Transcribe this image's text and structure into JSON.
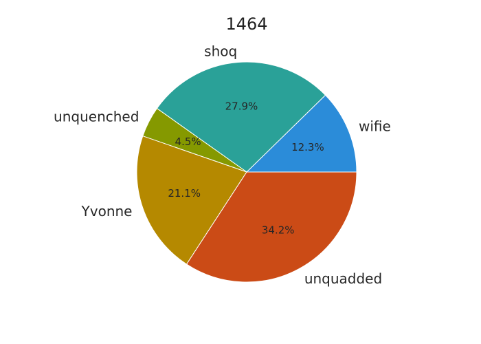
{
  "chart_data": {
    "type": "pie",
    "title": "1464",
    "slices": [
      {
        "label": "wifie",
        "value": 12.3,
        "pct_label": "12.3%",
        "color": "#2b8cd9"
      },
      {
        "label": "shoq",
        "value": 27.9,
        "pct_label": "27.9%",
        "color": "#2aa198"
      },
      {
        "label": "unquenched",
        "value": 4.5,
        "pct_label": "4.5%",
        "color": "#859900"
      },
      {
        "label": "Yvonne",
        "value": 21.1,
        "pct_label": "21.1%",
        "color": "#b58900"
      },
      {
        "label": "unquadded",
        "value": 34.2,
        "pct_label": "34.2%",
        "color": "#cb4b16"
      }
    ],
    "start_angle_deg": 0,
    "direction": "counterclockwise",
    "legend": "none"
  }
}
